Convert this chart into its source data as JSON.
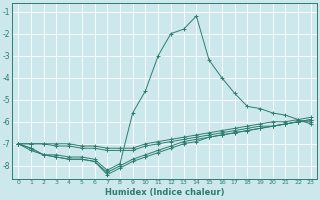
{
  "xlabel": "Humidex (Indice chaleur)",
  "bg_color": "#cce8ec",
  "grid_color": "#ffffff",
  "line_color": "#2e7d6e",
  "xlim": [
    -0.5,
    23.5
  ],
  "ylim": [
    -8.6,
    -0.6
  ],
  "yticks": [
    -8,
    -7,
    -6,
    -5,
    -4,
    -3,
    -2,
    -1
  ],
  "xticks": [
    0,
    1,
    2,
    3,
    4,
    5,
    6,
    7,
    8,
    9,
    10,
    11,
    12,
    13,
    14,
    15,
    16,
    17,
    18,
    19,
    20,
    21,
    22,
    23
  ],
  "lines": [
    {
      "x": [
        0,
        1,
        2,
        3,
        4,
        5,
        6,
        7,
        8,
        9,
        10,
        11,
        12,
        13,
        14,
        15,
        16,
        17,
        18,
        19,
        20,
        21,
        22,
        23
      ],
      "y": [
        -7.0,
        -7.3,
        -7.5,
        -7.5,
        -7.6,
        -7.6,
        -7.7,
        -8.2,
        -7.9,
        -5.6,
        -4.6,
        -3.0,
        -2.0,
        -1.8,
        -1.2,
        -3.2,
        -4.0,
        -4.7,
        -5.3,
        -5.4,
        -5.6,
        -5.7,
        -5.9,
        -6.1
      ]
    },
    {
      "x": [
        0,
        1,
        2,
        3,
        4,
        5,
        6,
        7,
        8,
        9,
        10,
        11,
        12,
        13,
        14,
        15,
        16,
        17,
        18,
        19,
        20,
        21,
        22,
        23
      ],
      "y": [
        -7.0,
        -7.0,
        -7.0,
        -7.0,
        -7.0,
        -7.1,
        -7.1,
        -7.2,
        -7.2,
        -7.2,
        -7.0,
        -6.9,
        -6.8,
        -6.7,
        -6.6,
        -6.5,
        -6.4,
        -6.3,
        -6.2,
        -6.1,
        -6.0,
        -6.0,
        -5.9,
        -5.8
      ]
    },
    {
      "x": [
        0,
        1,
        2,
        3,
        4,
        5,
        6,
        7,
        8,
        9,
        10,
        11,
        12,
        13,
        14,
        15,
        16,
        17,
        18,
        19,
        20,
        21,
        22,
        23
      ],
      "y": [
        -7.0,
        -7.0,
        -7.0,
        -7.1,
        -7.1,
        -7.2,
        -7.2,
        -7.3,
        -7.3,
        -7.3,
        -7.1,
        -7.0,
        -6.9,
        -6.8,
        -6.7,
        -6.6,
        -6.5,
        -6.4,
        -6.3,
        -6.2,
        -6.2,
        -6.1,
        -6.0,
        -6.0
      ]
    },
    {
      "x": [
        0,
        1,
        2,
        3,
        4,
        5,
        6,
        7,
        8,
        9,
        10,
        11,
        12,
        13,
        14,
        15,
        16,
        17,
        18,
        19,
        20,
        21,
        22,
        23
      ],
      "y": [
        -7.0,
        -7.2,
        -7.5,
        -7.6,
        -7.7,
        -7.7,
        -7.8,
        -8.3,
        -8.0,
        -7.7,
        -7.5,
        -7.3,
        -7.1,
        -6.9,
        -6.8,
        -6.7,
        -6.6,
        -6.5,
        -6.4,
        -6.3,
        -6.2,
        -6.1,
        -6.0,
        -5.9
      ]
    },
    {
      "x": [
        0,
        1,
        2,
        3,
        4,
        5,
        6,
        7,
        8,
        9,
        10,
        11,
        12,
        13,
        14,
        15,
        16,
        17,
        18,
        19,
        20,
        21,
        22,
        23
      ],
      "y": [
        -7.0,
        -7.2,
        -7.5,
        -7.6,
        -7.7,
        -7.7,
        -7.8,
        -8.4,
        -8.1,
        -7.8,
        -7.6,
        -7.4,
        -7.2,
        -7.0,
        -6.9,
        -6.7,
        -6.6,
        -6.5,
        -6.4,
        -6.3,
        -6.2,
        -6.1,
        -6.0,
        -5.9
      ]
    }
  ]
}
